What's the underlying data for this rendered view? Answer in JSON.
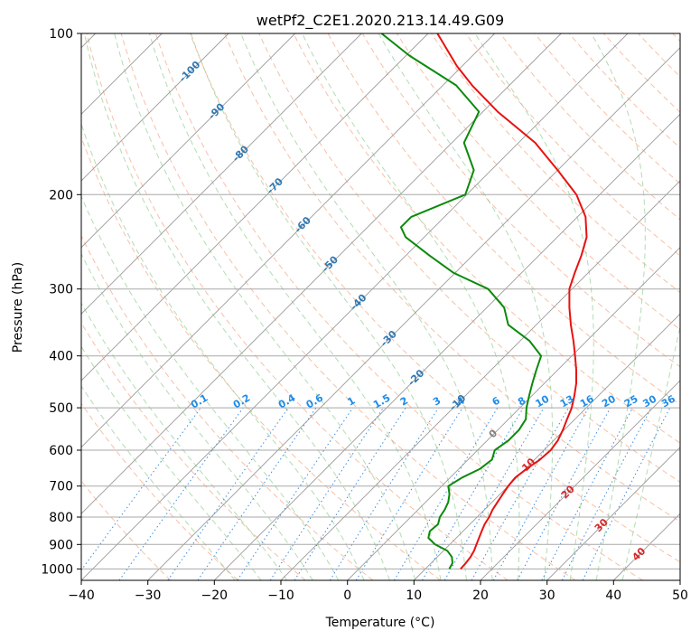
{
  "chart_data": {
    "type": "line",
    "title": "wetPf2_C2E1.2020.213.14.49.G09",
    "xlabel": "Temperature (°C)",
    "ylabel": "Pressure (hPa)",
    "xlim": [
      -40,
      50
    ],
    "ylim": [
      1050,
      100
    ],
    "y_scale": "log",
    "grid": true,
    "x_ticks": [
      -40,
      -30,
      -20,
      -10,
      0,
      10,
      20,
      30,
      40,
      50
    ],
    "y_ticks": [
      100,
      200,
      300,
      400,
      500,
      600,
      700,
      800,
      900,
      1000
    ],
    "colors": {
      "temperature": "#e8120f",
      "dewpoint": "#0b8a0b",
      "isotherm": "#9a9a9a",
      "dry_adiabat": "#f4a582",
      "moist_adiabat": "#7fc47f",
      "mixing_ratio": "#3c8ce0",
      "upper_labels": "#2f78b4",
      "mixing_labels": "#1e8ce8",
      "lower_labels": "#d62728",
      "zero_label": "#808080"
    },
    "series": [
      {
        "kind": "temperature",
        "p": [
          1000,
          975,
          950,
          925,
          900,
          875,
          850,
          825,
          800,
          775,
          750,
          725,
          700,
          675,
          650,
          625,
          600,
          575,
          550,
          525,
          500,
          475,
          450,
          425,
          400,
          375,
          350,
          325,
          300,
          280,
          260,
          240,
          220,
          200,
          180,
          160,
          140,
          125,
          115,
          100
        ],
        "t": [
          15.3,
          15.2,
          15.0,
          14.6,
          14.0,
          13.4,
          12.8,
          12.2,
          11.8,
          11.2,
          10.8,
          10.4,
          10.0,
          9.8,
          10.2,
          10.8,
          11.0,
          10.6,
          9.8,
          8.8,
          7.8,
          6.4,
          4.8,
          2.8,
          0.5,
          -2.0,
          -4.8,
          -7.6,
          -10.4,
          -12.0,
          -13.6,
          -15.6,
          -18.8,
          -23.5,
          -30.0,
          -37.5,
          -47.8,
          -55.6,
          -60.8,
          -68.6
        ]
      },
      {
        "kind": "dewpoint",
        "p": [
          1000,
          975,
          950,
          925,
          900,
          875,
          850,
          825,
          800,
          775,
          750,
          725,
          700,
          675,
          650,
          625,
          600,
          575,
          550,
          525,
          500,
          475,
          450,
          425,
          400,
          375,
          350,
          325,
          300,
          280,
          260,
          240,
          230,
          220,
          200,
          180,
          160,
          140,
          125,
          110,
          100
        ],
        "t": [
          13.6,
          13.2,
          12.2,
          10.6,
          7.8,
          5.8,
          5.0,
          5.2,
          4.4,
          4.0,
          3.4,
          2.4,
          1.0,
          1.8,
          3.2,
          3.6,
          2.6,
          3.2,
          3.2,
          2.6,
          1.0,
          -0.4,
          -1.8,
          -3.2,
          -4.6,
          -8.6,
          -14.2,
          -17.4,
          -22.6,
          -30.2,
          -36.4,
          -42.8,
          -45.0,
          -45.0,
          -40.2,
          -42.6,
          -48.2,
          -50.6,
          -58.0,
          -69.5,
          -77.0
        ]
      }
    ],
    "isotherm_labels": [
      "-100",
      "-90",
      "-80",
      "-70",
      "-60",
      "-50",
      "-40",
      "-30",
      "-20",
      "-10",
      "0",
      "10",
      "20",
      "30",
      "40"
    ],
    "mixing_ratio_labels": [
      "0.1",
      "0.2",
      "0.4",
      "0.6",
      "1",
      "1.5",
      "2",
      "3",
      "4",
      "6",
      "8",
      "10",
      "13",
      "16",
      "20",
      "25",
      "30",
      "36"
    ]
  }
}
